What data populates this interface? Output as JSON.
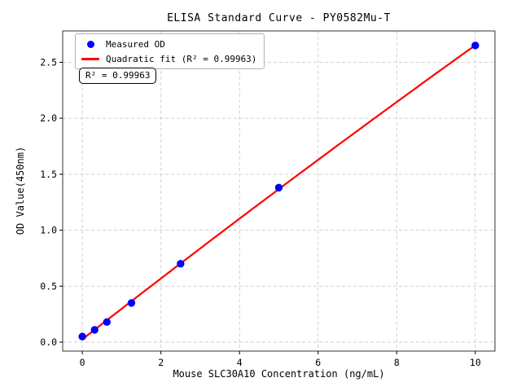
{
  "chart_data": {
    "type": "scatter",
    "title": "ELISA Standard Curve - PY0582Mu-T",
    "xlabel": "Mouse SLC30A10 Concentration (ng/mL)",
    "ylabel": "OD Value(450nm)",
    "xlim": [
      -0.5,
      10.5
    ],
    "ylim": [
      -0.08,
      2.78
    ],
    "grid": true,
    "legend_position": "upper left",
    "xticks": {
      "values": [
        0,
        2,
        4,
        6,
        8,
        10
      ],
      "labels": [
        "0",
        "2",
        "4",
        "6",
        "8",
        "10"
      ]
    },
    "yticks": {
      "values": [
        0,
        0.5,
        1.0,
        1.5,
        2.0,
        2.5
      ],
      "labels": [
        "0.0",
        "0.5",
        "1.0",
        "1.5",
        "2.0",
        "2.5"
      ]
    },
    "series": [
      {
        "name": "Measured OD",
        "type": "scatter",
        "color": "#0000ff",
        "x": [
          0,
          0.3125,
          0.625,
          1.25,
          2.5,
          5,
          10
        ],
        "y": [
          0.05,
          0.11,
          0.18,
          0.35,
          0.7,
          1.38,
          2.65
        ]
      },
      {
        "name": "Quadratic fit (R² = 0.99963)",
        "type": "line",
        "fit": "quadratic",
        "fit_range": [
          0,
          10
        ],
        "color": "#ff0000",
        "r_squared": 0.99963
      }
    ],
    "annotation": {
      "text": "R² = 0.99963"
    },
    "colors": {
      "grid": "#cccccc",
      "spine": "#333333",
      "tick": "#000000",
      "background": "#ffffff"
    }
  }
}
